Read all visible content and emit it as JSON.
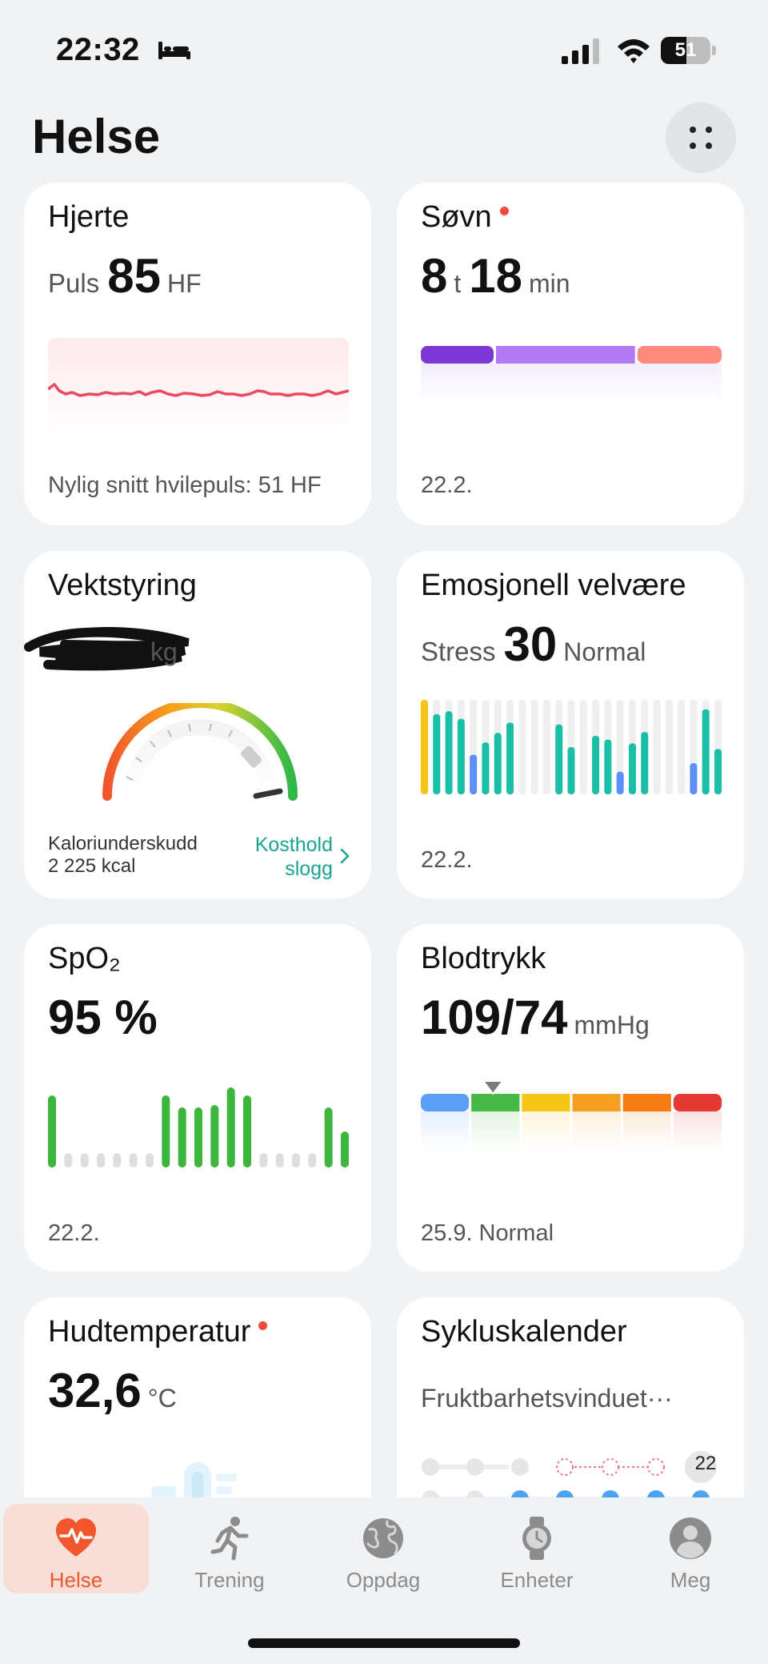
{
  "status_bar": {
    "time": "22:32",
    "battery": "51",
    "battery_level": 0.51
  },
  "header": {
    "title": "Helse"
  },
  "cards": {
    "heart": {
      "title": "Hjerte",
      "label": "Puls",
      "value": "85",
      "unit": "HF",
      "footer": "Nylig snitt hvilepuls: 51 HF"
    },
    "sleep": {
      "title": "Søvn",
      "hours": "8",
      "hours_unit": "t",
      "minutes": "18",
      "minutes_unit": "min",
      "footer": "22.2.",
      "segments": [
        {
          "share": 0.25,
          "color": "#7f38d8"
        },
        {
          "share": 0.47,
          "color": "#b07af2"
        },
        {
          "share": 0.28,
          "color": "#ff8a80"
        }
      ]
    },
    "weight": {
      "title": "Vektstyring",
      "unit": "kg",
      "deficit_label": "Kaloriunderskudd",
      "deficit_value": "2 225 kcal",
      "link_line1": "Kosthold",
      "link_line2": "slogg"
    },
    "emotion": {
      "title": "Emosjonell velvære",
      "label": "Stress",
      "value": "30",
      "status": "Normal",
      "footer": "22.2.",
      "levels": [
        1,
        0.85,
        0.88,
        0.8,
        0.42,
        0.55,
        0.65,
        0.76,
        0,
        0,
        0,
        0.74,
        0.5,
        0,
        0.62,
        0.58,
        0.24,
        0.54,
        0.66,
        0,
        0,
        0,
        0.33,
        0.9,
        0.48
      ],
      "level_colors": [
        "#f5c518",
        "#1bbfa8",
        "#1bbfa8",
        "#1bbfa8",
        "#5b8ff9",
        "#1bbfa8",
        "#1bbfa8",
        "#1bbfa8",
        "",
        "",
        "",
        "#1bbfa8",
        "#1bbfa8",
        "",
        "#1bbfa8",
        "#1bbfa8",
        "#5b8ff9",
        "#1bbfa8",
        "#1bbfa8",
        "",
        "",
        "",
        "#5b8ff9",
        "#1bbfa8",
        "#1bbfa8"
      ]
    },
    "spo2": {
      "title": "SpO₂",
      "value": "95 %",
      "footer": "22.2.",
      "bars": [
        0.9,
        0,
        0,
        0,
        0,
        0,
        0,
        0.9,
        0.75,
        0.75,
        0.78,
        1,
        0.9,
        0,
        0,
        0,
        0,
        0.75,
        0.45
      ]
    },
    "blood_pressure": {
      "title": "Blodtrykk",
      "value": "109/74",
      "unit": "mmHg",
      "footer": "25.9. Normal",
      "zones": [
        "#5b9ef5",
        "#45b845",
        "#f5c518",
        "#f5a020",
        "#f57d14",
        "#e53935"
      ],
      "marker_zone": 1
    },
    "skin_temp": {
      "title": "Hudtemperatur",
      "value": "32,6",
      "unit": "°C"
    },
    "cycle": {
      "title": "Sykluskalender",
      "subtitle": "Fruktbarhetsvinduet···",
      "day_badge": "22"
    }
  },
  "nav": {
    "items": [
      {
        "label": "Helse",
        "icon": "heart-pulse-icon",
        "active": true
      },
      {
        "label": "Trening",
        "icon": "running-icon",
        "active": false
      },
      {
        "label": "Oppdag",
        "icon": "globe-icon",
        "active": false
      },
      {
        "label": "Enheter",
        "icon": "watch-icon",
        "active": false
      },
      {
        "label": "Meg",
        "icon": "person-icon",
        "active": false
      }
    ]
  }
}
